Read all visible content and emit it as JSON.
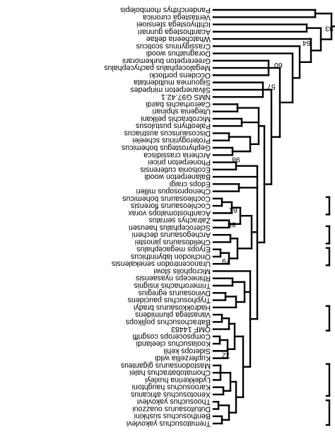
{
  "figure": {
    "kind": "phylogenetic cladogram",
    "image_orientation": "rotated 180 degrees (text appears upside-down)",
    "line_color": "#000000",
    "background": "#ffffff"
  },
  "taxa": [
    "Trematosuchus yakovlevi",
    "Benthosuchus sushkini",
    "Dutuitosaurus ouazzoui",
    "Thoosuchus yakovlevi",
    "Xenotosuchus africanus",
    "Karoosuchus haughtoni",
    "Lydekkerina huxleyi",
    "Chomatobatrachus halei",
    "Mastodonsaurus giganteus",
    "Kupferzellia wildi",
    "Siderops kehli",
    "Koolasuchus cleelandi",
    "Compsocerops cosgriffi",
    "QMF 14483",
    "Batrachosuchus pojlikops",
    "Vanastega plurimidens",
    "Hadrokkosaurus bradyi",
    "Tryphosuchus paucidens",
    "Dvinosaurus egregius",
    "Trimerorhachis insignis",
    "Rhineceps nyasaensis",
    "Micropholis stowi",
    "Uranocentrodon senekalensis",
    "Onchiodon labyrinthicus",
    "Eryops megacephalus",
    "Chelidosaurus janostei",
    "Archegosaurus decheni",
    "Sclerocephalus haeuseri",
    "Zatrachys serratus",
    "Acanthostomatops vorax",
    "Cochleosaurus florensis",
    "Cochleosaurus bohemicus",
    "Chenoprosopus milleri",
    "Edops craigi",
    "Balanerpeton woodi",
    "Ecolsonia cutlerensis",
    "Phonerpeton pricei",
    "Archeria crassidisca",
    "Gephyrostegus bohemicus",
    "Proterogyrinus scheelei",
    "Discosauriscus austriacus",
    "Paleothyris pustulosus",
    "Microbrachis pelikani",
    "Utegenia shpinari",
    "Caerorhachis bairdi",
    "NMS G97.42.1",
    "Silvanerpeton miripedes",
    "Sigournea multidentata",
    "Occidens portlocki",
    "Megalocephalus pachycephalus",
    "Greererpeton burkemorani",
    "Doragnathus woodi",
    "Crassigyrinus scoticus",
    "Whatcheeria deltae",
    "Acanthostega gunnari",
    "Ichthyostega stensioei",
    "Ventastega curonica",
    "Panderichthys rhombolepis"
  ],
  "support_values": [
    "72",
    "79",
    "85",
    "61",
    "98",
    "57",
    "60",
    "64",
    "93"
  ]
}
